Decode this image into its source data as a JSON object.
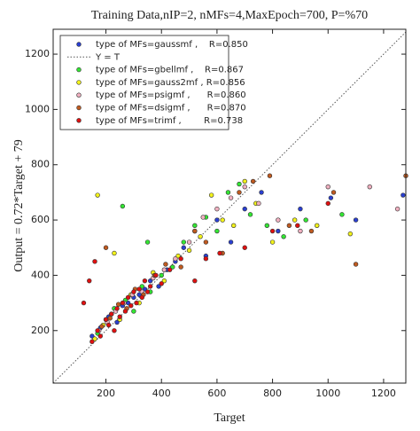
{
  "chart_data": {
    "type": "scatter",
    "title": "Training Data,nIP=2, nMFs=4,MaxEpoch=700, P=%70",
    "x_label": "Target",
    "y_label": "Output  = 0.72*Target + 79",
    "xlim": [
      10,
      1280
    ],
    "ylim": [
      10,
      1290
    ],
    "xticks": [
      200,
      400,
      600,
      800,
      1000,
      1200
    ],
    "yticks": [
      200,
      400,
      600,
      800,
      1000,
      1200
    ],
    "legend": "top-left",
    "reference_line": {
      "name": "Y = T",
      "color": "#555555"
    },
    "series": [
      {
        "name": "type of MFs=gaussmf ,    R=0.850",
        "color": "#2a3fd0",
        "x": [
          180,
          210,
          240,
          260,
          280,
          300,
          320,
          340,
          360,
          390,
          420,
          450,
          480,
          520,
          560,
          600,
          650,
          700,
          760,
          820,
          900,
          1010,
          1100,
          1270,
          150
        ],
        "values": [
          210,
          250,
          230,
          290,
          300,
          320,
          330,
          350,
          380,
          360,
          420,
          450,
          500,
          560,
          470,
          600,
          520,
          640,
          700,
          560,
          640,
          680,
          600,
          690,
          180
        ]
      },
      {
        "name": "type of MFs=gbellmf ,    R=0.867",
        "color": "#33e633",
        "x": [
          170,
          200,
          230,
          270,
          300,
          330,
          360,
          400,
          440,
          480,
          520,
          560,
          600,
          640,
          680,
          720,
          780,
          840,
          920,
          1050,
          260,
          350
        ],
        "values": [
          190,
          240,
          280,
          310,
          270,
          360,
          340,
          400,
          430,
          520,
          580,
          610,
          560,
          700,
          730,
          620,
          580,
          540,
          600,
          620,
          650,
          520
        ]
      },
      {
        "name": "type of MFs=gauss2mf , R=0.856",
        "color": "#f2f21a",
        "x": [
          160,
          190,
          220,
          250,
          290,
          320,
          370,
          410,
          460,
          500,
          540,
          580,
          620,
          660,
          700,
          740,
          800,
          880,
          960,
          1080,
          170,
          230
        ],
        "values": [
          170,
          220,
          260,
          240,
          330,
          300,
          410,
          380,
          470,
          490,
          540,
          690,
          600,
          580,
          740,
          660,
          520,
          600,
          580,
          550,
          690,
          480
        ]
      },
      {
        "name": "type of MFs=psigmf ,      R=0.860",
        "color": "#f0b0c0",
        "x": [
          175,
          205,
          235,
          265,
          295,
          330,
          370,
          410,
          450,
          500,
          550,
          600,
          650,
          700,
          750,
          820,
          900,
          1000,
          1150,
          1250
        ],
        "values": [
          200,
          230,
          270,
          300,
          330,
          340,
          390,
          420,
          460,
          520,
          610,
          640,
          680,
          720,
          660,
          600,
          560,
          720,
          720,
          640
        ]
      },
      {
        "name": "type of MFs=dsigmf ,      R=0.870",
        "color": "#c05a20",
        "x": [
          185,
          215,
          245,
          275,
          305,
          335,
          375,
          415,
          470,
          520,
          560,
          620,
          680,
          730,
          790,
          860,
          940,
          1020,
          1100,
          1280,
          200
        ],
        "values": [
          215,
          245,
          295,
          280,
          350,
          330,
          400,
          440,
          430,
          560,
          520,
          480,
          700,
          740,
          760,
          580,
          560,
          700,
          440,
          760,
          500
        ]
      },
      {
        "name": "type of MFs=trimf ,        R=0.738",
        "color": "#e01010",
        "x": [
          150,
          170,
          180,
          200,
          210,
          220,
          230,
          240,
          250,
          260,
          270,
          280,
          290,
          300,
          310,
          320,
          330,
          340,
          350,
          360,
          380,
          400,
          430,
          470,
          520,
          560,
          610,
          700,
          800,
          890,
          1000,
          120,
          140,
          160
        ],
        "values": [
          160,
          200,
          180,
          240,
          220,
          260,
          200,
          280,
          250,
          300,
          270,
          320,
          290,
          340,
          300,
          350,
          320,
          380,
          340,
          360,
          400,
          370,
          420,
          460,
          380,
          460,
          480,
          500,
          560,
          580,
          660,
          300,
          380,
          450
        ]
      }
    ]
  }
}
